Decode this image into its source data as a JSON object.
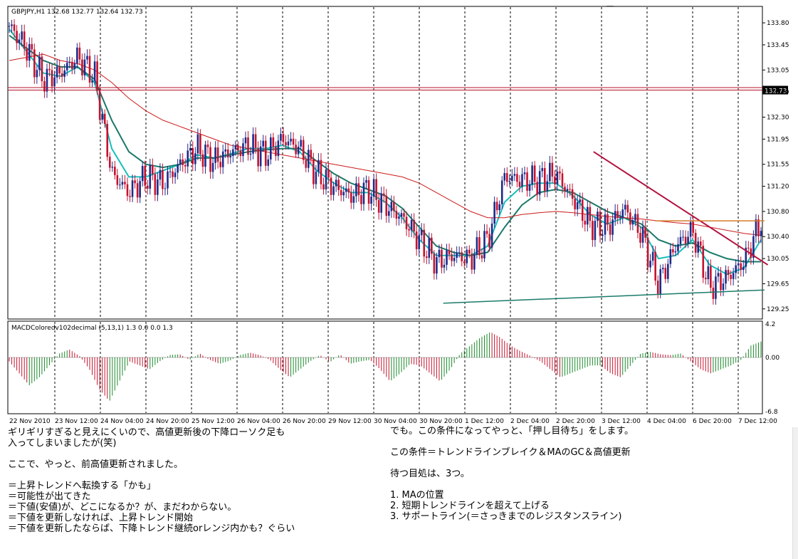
{
  "chart_header": "GBPJPY,H1  132.68 132.77 132.64 132.73",
  "price_marker": "132.73",
  "macd_label": "MACDColoredv102decimal (5,13,1) 1.3 0.0 0.0 1.3",
  "chart_data": [
    {
      "type": "candlestick",
      "title": "GBPJPY,H1",
      "ohlc_last": {
        "open": 132.68,
        "high": 132.77,
        "low": 132.64,
        "close": 132.73
      },
      "ylim": [
        129.1,
        134.05
      ],
      "y_ticks": [
        "133.80",
        "133.45",
        "133.05",
        "132.70",
        "132.30",
        "131.95",
        "131.55",
        "131.20",
        "130.80",
        "130.40",
        "130.05",
        "129.65",
        "129.25"
      ],
      "x_ticks": [
        "22 Nov 2010",
        "23 Nov 12:00",
        "24 Nov 04:00",
        "24 Nov 20:00",
        "25 Nov 12:00",
        "26 Nov 04:00",
        "26 Nov 20:00",
        "29 Nov 12:00",
        "30 Nov 04:00",
        "30 Nov 20:00",
        "1 Dec 12:00",
        "2 Dec 04:00",
        "2 Dec 20:00",
        "3 Dec 12:00",
        "4 Dec 04:00",
        "6 Dec 20:00",
        "7 Dec 12:00"
      ],
      "close_path": [
        133.75,
        133.4,
        132.9,
        133.0,
        133.25,
        132.95,
        131.4,
        131.1,
        131.35,
        131.25,
        131.55,
        131.8,
        131.6,
        131.75,
        131.85,
        131.7,
        131.95,
        131.8,
        131.4,
        131.2,
        131.05,
        131.15,
        130.9,
        130.7,
        130.35,
        130.0,
        130.1,
        130.05,
        130.35,
        131.35,
        131.3,
        131.3,
        131.4,
        131.0,
        130.6,
        130.55,
        130.85,
        130.45,
        129.65,
        130.25,
        130.5,
        129.6,
        129.75,
        130.0,
        130.65
      ],
      "series": [
        {
          "name": "MA fast",
          "color": "#17bebb",
          "values": [
            133.7,
            133.35,
            133.0,
            132.95,
            133.1,
            132.85,
            131.8,
            131.35,
            131.35,
            131.45,
            131.55,
            131.7,
            131.65,
            131.72,
            131.8,
            131.8,
            131.85,
            131.75,
            131.45,
            131.25,
            131.1,
            131.1,
            130.95,
            130.7,
            130.35,
            130.1,
            130.1,
            130.1,
            130.25,
            130.95,
            131.2,
            131.25,
            131.25,
            131.05,
            130.75,
            130.6,
            130.7,
            130.55,
            130.05,
            130.1,
            130.35,
            129.95,
            129.8,
            129.9,
            130.35
          ]
        },
        {
          "name": "MA medium",
          "color": "#1a7a6a",
          "values": [
            133.6,
            133.4,
            133.2,
            133.1,
            133.1,
            132.9,
            132.25,
            131.75,
            131.55,
            131.5,
            131.55,
            131.65,
            131.65,
            131.7,
            131.75,
            131.78,
            131.8,
            131.8,
            131.6,
            131.4,
            131.25,
            131.15,
            131.05,
            130.85,
            130.55,
            130.25,
            130.15,
            130.1,
            130.15,
            130.55,
            130.9,
            131.1,
            131.15,
            131.1,
            130.95,
            130.8,
            130.7,
            130.6,
            130.35,
            130.25,
            130.3,
            130.15,
            130.05,
            130.0,
            130.0
          ]
        },
        {
          "name": "MA slow",
          "color": "#cc1a1a",
          "values": [
            133.2,
            133.25,
            133.3,
            133.2,
            133.15,
            133.05,
            132.85,
            132.6,
            132.4,
            132.25,
            132.15,
            132.05,
            131.95,
            131.85,
            131.8,
            131.75,
            131.7,
            131.65,
            131.6,
            131.55,
            131.5,
            131.45,
            131.4,
            131.35,
            131.25,
            131.1,
            130.95,
            130.8,
            130.7,
            130.7,
            130.75,
            130.78,
            130.8,
            130.78,
            130.75,
            130.72,
            130.7,
            130.68,
            130.65,
            130.62,
            130.6,
            130.55,
            130.5,
            130.45,
            130.42
          ]
        }
      ],
      "annotations": [
        "horizontal line 132.77",
        "horizontal line 132.73",
        "downtrend line",
        "support line",
        "resistance line"
      ]
    },
    {
      "type": "bar",
      "title": "MACDColoredv102decimal (5,13,1)",
      "ylim": [
        -6.8,
        4.2
      ],
      "y_ticks": [
        "4.2",
        "0.00",
        "-6.8"
      ],
      "values": [
        -0.5,
        -2.0,
        -3.5,
        -2.5,
        -1.0,
        0.5,
        1.0,
        0.2,
        -1.5,
        -4.0,
        -5.5,
        -3.0,
        -0.5,
        -1.0,
        -1.5,
        -0.5,
        0.3,
        0.4,
        -0.3,
        0.5,
        -0.3,
        -0.8,
        -0.4,
        0.3,
        0.6,
        0.3,
        -0.3,
        -1.5,
        -2.5,
        -1.5,
        -0.5,
        0.3,
        -0.6,
        0.4,
        -0.8,
        -0.5,
        -0.3,
        -1.5,
        -3.0,
        -2.0,
        -0.8,
        -1.0,
        -2.0,
        -3.0,
        -1.5,
        0.5,
        1.5,
        2.5,
        3.2,
        2.5,
        1.5,
        0.8,
        0.2,
        -0.5,
        -1.5,
        -2.5,
        -2.0,
        -1.5,
        -1.0,
        -1.0,
        -2.0,
        -2.5,
        -1.0,
        0.5,
        0.7,
        0.4,
        0.3,
        0.5,
        -0.5,
        -1.5,
        -2.0,
        -1.5,
        -1.0,
        -0.3,
        1.5,
        2.0
      ]
    }
  ],
  "notes": {
    "left": "ギリギリすぎると見えにくいので、高値更新後の下降ローソク足も\n入ってしまいましたが(笑)\n\nここで、やっと、前高値更新されました。\n\n＝上昇トレンドへ転換する「かも」\n＝可能性が出てきた\n＝下値(安値)が、どこになるか？が、まだわからない。\n＝下値を更新しなければ、上昇トレンド開始\n＝下値を更新したならば、下降トレンド継続orレンジ内かも？ぐらい",
    "right": "でも。この条件になってやっと、「押し目待ち」をします。\n\nこの条件＝トレンドラインブレイク＆MAのGC＆高値更新\n\n待つ目処は、3つ。\n\n1. MAの位置\n2. 短期トレンドラインを超えて上げる\n3. サポートライン(＝さっきまでのレジスタンスライン)"
  }
}
